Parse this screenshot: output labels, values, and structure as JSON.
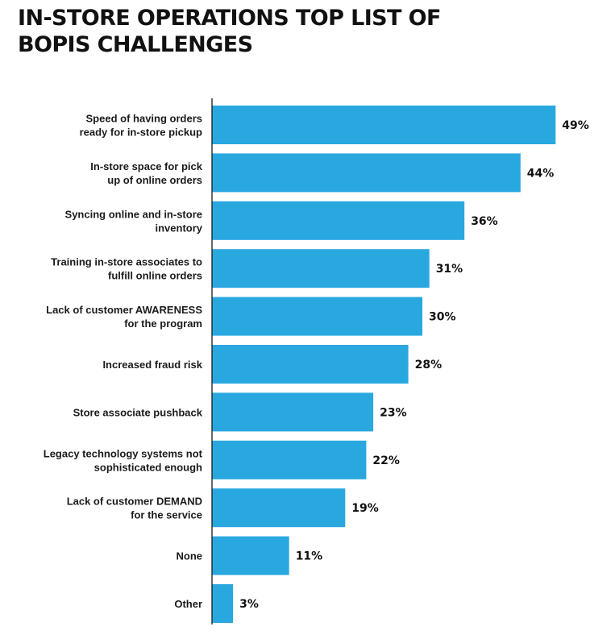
{
  "title": {
    "line1": "IN-STORE OPERATIONS TOP LIST OF",
    "line2": "BOPIS CHALLENGES"
  },
  "chart_data": {
    "type": "bar",
    "orientation": "horizontal",
    "title": "IN-STORE OPERATIONS TOP LIST OF BOPIS CHALLENGES",
    "bar_color": "#29a8e0",
    "value_suffix": "%",
    "xlim": [
      0,
      50
    ],
    "grid": false,
    "categories": [
      [
        "Speed of having orders",
        "ready for in-store pickup"
      ],
      [
        "In-store space for pick",
        "up of online orders"
      ],
      [
        "Syncing online and in-store",
        "inventory"
      ],
      [
        "Training in-store associates to",
        "fulfill online orders"
      ],
      [
        "Lack of customer AWARENESS",
        "for the program"
      ],
      [
        "Increased fraud risk"
      ],
      [
        "Store associate pushback"
      ],
      [
        "Legacy technology systems not",
        "sophisticated enough"
      ],
      [
        "Lack of customer DEMAND",
        "for the service"
      ],
      [
        "None"
      ],
      [
        "Other"
      ]
    ],
    "values": [
      49,
      44,
      36,
      31,
      30,
      28,
      23,
      22,
      19,
      11,
      3
    ]
  }
}
